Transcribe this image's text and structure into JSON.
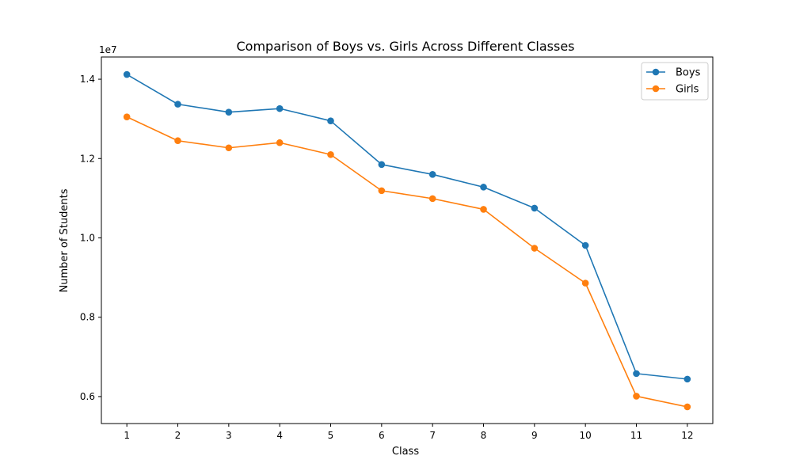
{
  "chart_data": {
    "type": "line",
    "title": "Comparison of Boys vs. Girls Across Different Classes",
    "xlabel": "Class",
    "ylabel": "Number of Students",
    "y_offset_label": "1e7",
    "x": [
      "1",
      "2",
      "3",
      "4",
      "5",
      "6",
      "7",
      "8",
      "9",
      "10",
      "11",
      "12"
    ],
    "xlim": [
      0.5,
      12.5
    ],
    "ylim": [
      5.32,
      14.56
    ],
    "y_scale": 10000000,
    "y_ticks": [
      6000000,
      8000000,
      10000000,
      12000000,
      14000000
    ],
    "y_tick_labels": [
      "0.6",
      "0.8",
      "1.0",
      "1.2",
      "1.4"
    ],
    "grid": false,
    "legend_position": "top-right",
    "series": [
      {
        "name": "Boys",
        "color": "#1f77b4",
        "values": [
          14120000,
          13370000,
          13170000,
          13260000,
          12950000,
          11850000,
          11600000,
          11280000,
          10750000,
          9810000,
          6580000,
          6440000
        ]
      },
      {
        "name": "Girls",
        "color": "#ff7f0e",
        "values": [
          13050000,
          12450000,
          12270000,
          12400000,
          12100000,
          11190000,
          10990000,
          10720000,
          9740000,
          8860000,
          6010000,
          5740000
        ]
      }
    ]
  }
}
